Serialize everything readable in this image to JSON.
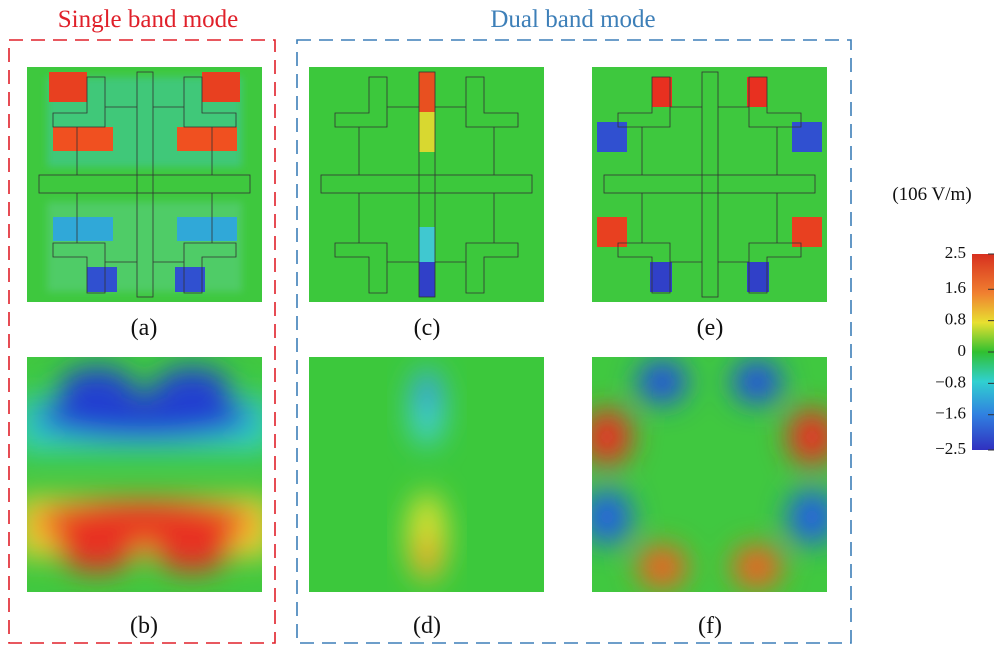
{
  "groups": [
    {
      "title": "Single band mode"
    },
    {
      "title": "Dual band mode"
    }
  ],
  "panels": [
    {
      "label": "(a)"
    },
    {
      "label": "(b)"
    },
    {
      "label": "(c)"
    },
    {
      "label": "(d)"
    },
    {
      "label": "(e)"
    },
    {
      "label": "(f)"
    }
  ],
  "colorbar": {
    "title": "(106 V/m)",
    "lim": [
      -2.5,
      2.5
    ],
    "ticks": [
      2.5,
      1.6,
      0.8,
      0,
      {
        "value": -0.8,
        "label": "−0.8"
      },
      {
        "value": -1.6,
        "label": "−1.6"
      },
      {
        "value": -2.5,
        "label": "−2.5"
      }
    ]
  }
}
